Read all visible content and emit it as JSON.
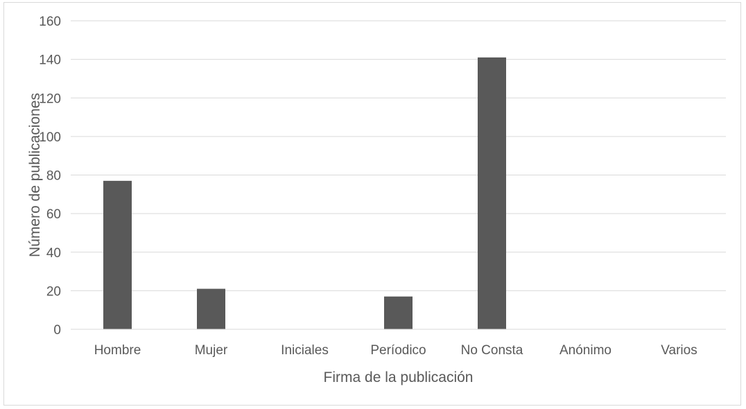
{
  "chart_data": {
    "type": "bar",
    "categories": [
      "Hombre",
      "Mujer",
      "Iniciales",
      "Períodico",
      "No Consta",
      "Anónimo",
      "Varios"
    ],
    "series": [
      {
        "values": [
          77,
          21,
          0,
          17,
          141,
          0,
          0
        ],
        "color": "#595959"
      }
    ],
    "xlabel": "Firma de la publicación",
    "ylabel": "Número de publicaciones",
    "ylim": [
      0,
      160
    ],
    "yticks": [
      0,
      20,
      40,
      60,
      80,
      100,
      120,
      140,
      160
    ],
    "grid": true,
    "legend": "none"
  }
}
